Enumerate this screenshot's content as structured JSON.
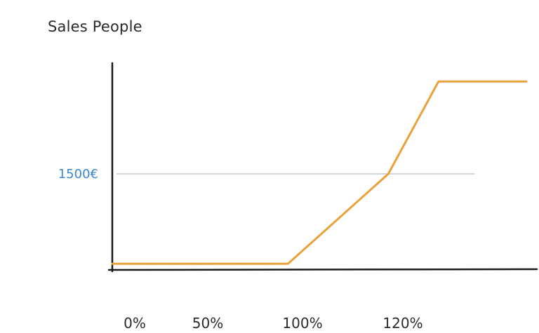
{
  "chart_data": {
    "type": "line",
    "title": "Sales People",
    "xlabel": "",
    "ylabel": "",
    "x_ticks": [
      {
        "label": "0%",
        "value": 0
      },
      {
        "label": "50%",
        "value": 50
      },
      {
        "label": "100%",
        "value": 100
      },
      {
        "label": "120%",
        "value": 120
      }
    ],
    "y_reference": {
      "label": "1500€",
      "value": 1500
    },
    "series": [
      {
        "color": "#e9a23b",
        "points": [
          {
            "x": -5,
            "y": 40
          },
          {
            "x": 65,
            "y": 40
          },
          {
            "x": 105,
            "y": 1500
          },
          {
            "x": 125,
            "y": 3000
          },
          {
            "x": 160,
            "y": 3000
          }
        ]
      }
    ],
    "xlim": [
      -5,
      160
    ],
    "ylim": [
      -60,
      3300
    ],
    "grid": false,
    "colors": {
      "line": "#e9a23b",
      "axis": "#1a1a1a",
      "reference_line": "#d3d6db",
      "reference_label": "#3a86d1"
    }
  }
}
